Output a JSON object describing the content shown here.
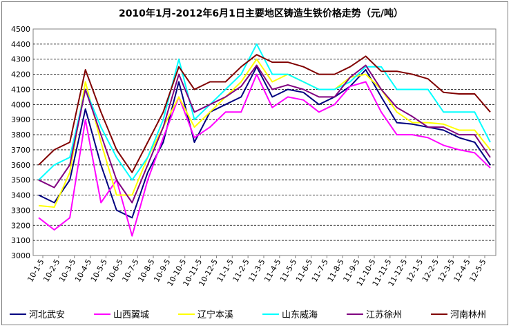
{
  "chart_data": {
    "type": "line",
    "title": "2010年1月-2012年6月1日主要地区铸造生铁价格走势（元/吨）",
    "ylim": [
      3000,
      4500
    ],
    "yticks": [
      "4500",
      "4400",
      "4300",
      "4200",
      "4100",
      "4000",
      "3900",
      "3800",
      "3700",
      "3600",
      "3500",
      "3400",
      "3300",
      "3200",
      "3100",
      "3000"
    ],
    "xticks": [
      "10-1-5",
      "10-2-5",
      "10-3-5",
      "10-4-5",
      "10-5-5",
      "10-6-5",
      "10-7-5",
      "10-8-5",
      "10-9-5",
      "10-10-5",
      "10-11-5",
      "10-12-5",
      "11-1-5",
      "11-2-5",
      "11-3-5",
      "11-4-5",
      "11-5-5",
      "11-6-5",
      "11-7-5",
      "11-8-5",
      "11-9-5",
      "11-10-5",
      "11-11-5",
      "11-12-5",
      "12-1-5",
      "12-2-5",
      "12-3-5",
      "12-4-5",
      "12-5-5"
    ],
    "grid": true,
    "legend_position": "bottom",
    "series": [
      {
        "name": "河北武安",
        "color": "#000080",
        "values": [
          3400,
          3350,
          3500,
          3970,
          3600,
          3300,
          3250,
          3550,
          3750,
          4150,
          3750,
          3950,
          4000,
          4050,
          4250,
          4050,
          4100,
          4080,
          4000,
          4050,
          4120,
          4230,
          4050,
          3880,
          3870,
          3850,
          3830,
          3780,
          3750,
          3600
        ]
      },
      {
        "name": "山西翼城",
        "color": "#ff00ff",
        "values": [
          3250,
          3170,
          3250,
          3900,
          3350,
          3500,
          3130,
          3500,
          3780,
          4050,
          3780,
          3850,
          3950,
          3950,
          4200,
          3980,
          4050,
          4030,
          3950,
          4000,
          4120,
          4150,
          3950,
          3800,
          3800,
          3780,
          3730,
          3700,
          3680,
          3580
        ]
      },
      {
        "name": "辽宁本溪",
        "color": "#ffff00",
        "values": [
          3330,
          3320,
          3550,
          4150,
          3750,
          3400,
          3400,
          3650,
          3850,
          4050,
          3850,
          3950,
          4050,
          4150,
          4300,
          4150,
          4200,
          4150,
          4100,
          4100,
          4180,
          4200,
          4100,
          3950,
          3880,
          3880,
          3870,
          3830,
          3830,
          3700
        ]
      },
      {
        "name": "山东威海",
        "color": "#00ffff",
        "values": [
          3500,
          3600,
          3650,
          4100,
          3850,
          3650,
          3500,
          3650,
          3900,
          4300,
          3900,
          4000,
          4100,
          4200,
          4400,
          4200,
          4200,
          4150,
          4100,
          4100,
          4150,
          4250,
          4250,
          4100,
          4100,
          4100,
          3950,
          3950,
          3950,
          3750
        ]
      },
      {
        "name": "江苏徐州",
        "color": "#800080",
        "values": [
          3500,
          3450,
          3600,
          4100,
          3800,
          3500,
          3350,
          3600,
          3850,
          4200,
          3950,
          4000,
          4050,
          4120,
          4260,
          4100,
          4130,
          4100,
          4050,
          4050,
          4180,
          4260,
          4100,
          3980,
          3920,
          3850,
          3850,
          3800,
          3800,
          3650
        ]
      },
      {
        "name": "河南林州",
        "color": "#800000",
        "values": [
          3600,
          3700,
          3750,
          4230,
          3950,
          3700,
          3550,
          3750,
          3950,
          4250,
          4100,
          4150,
          4150,
          4250,
          4330,
          4280,
          4280,
          4250,
          4200,
          4200,
          4250,
          4320,
          4220,
          4220,
          4200,
          4170,
          4080,
          4070,
          4070,
          3950
        ]
      }
    ]
  }
}
